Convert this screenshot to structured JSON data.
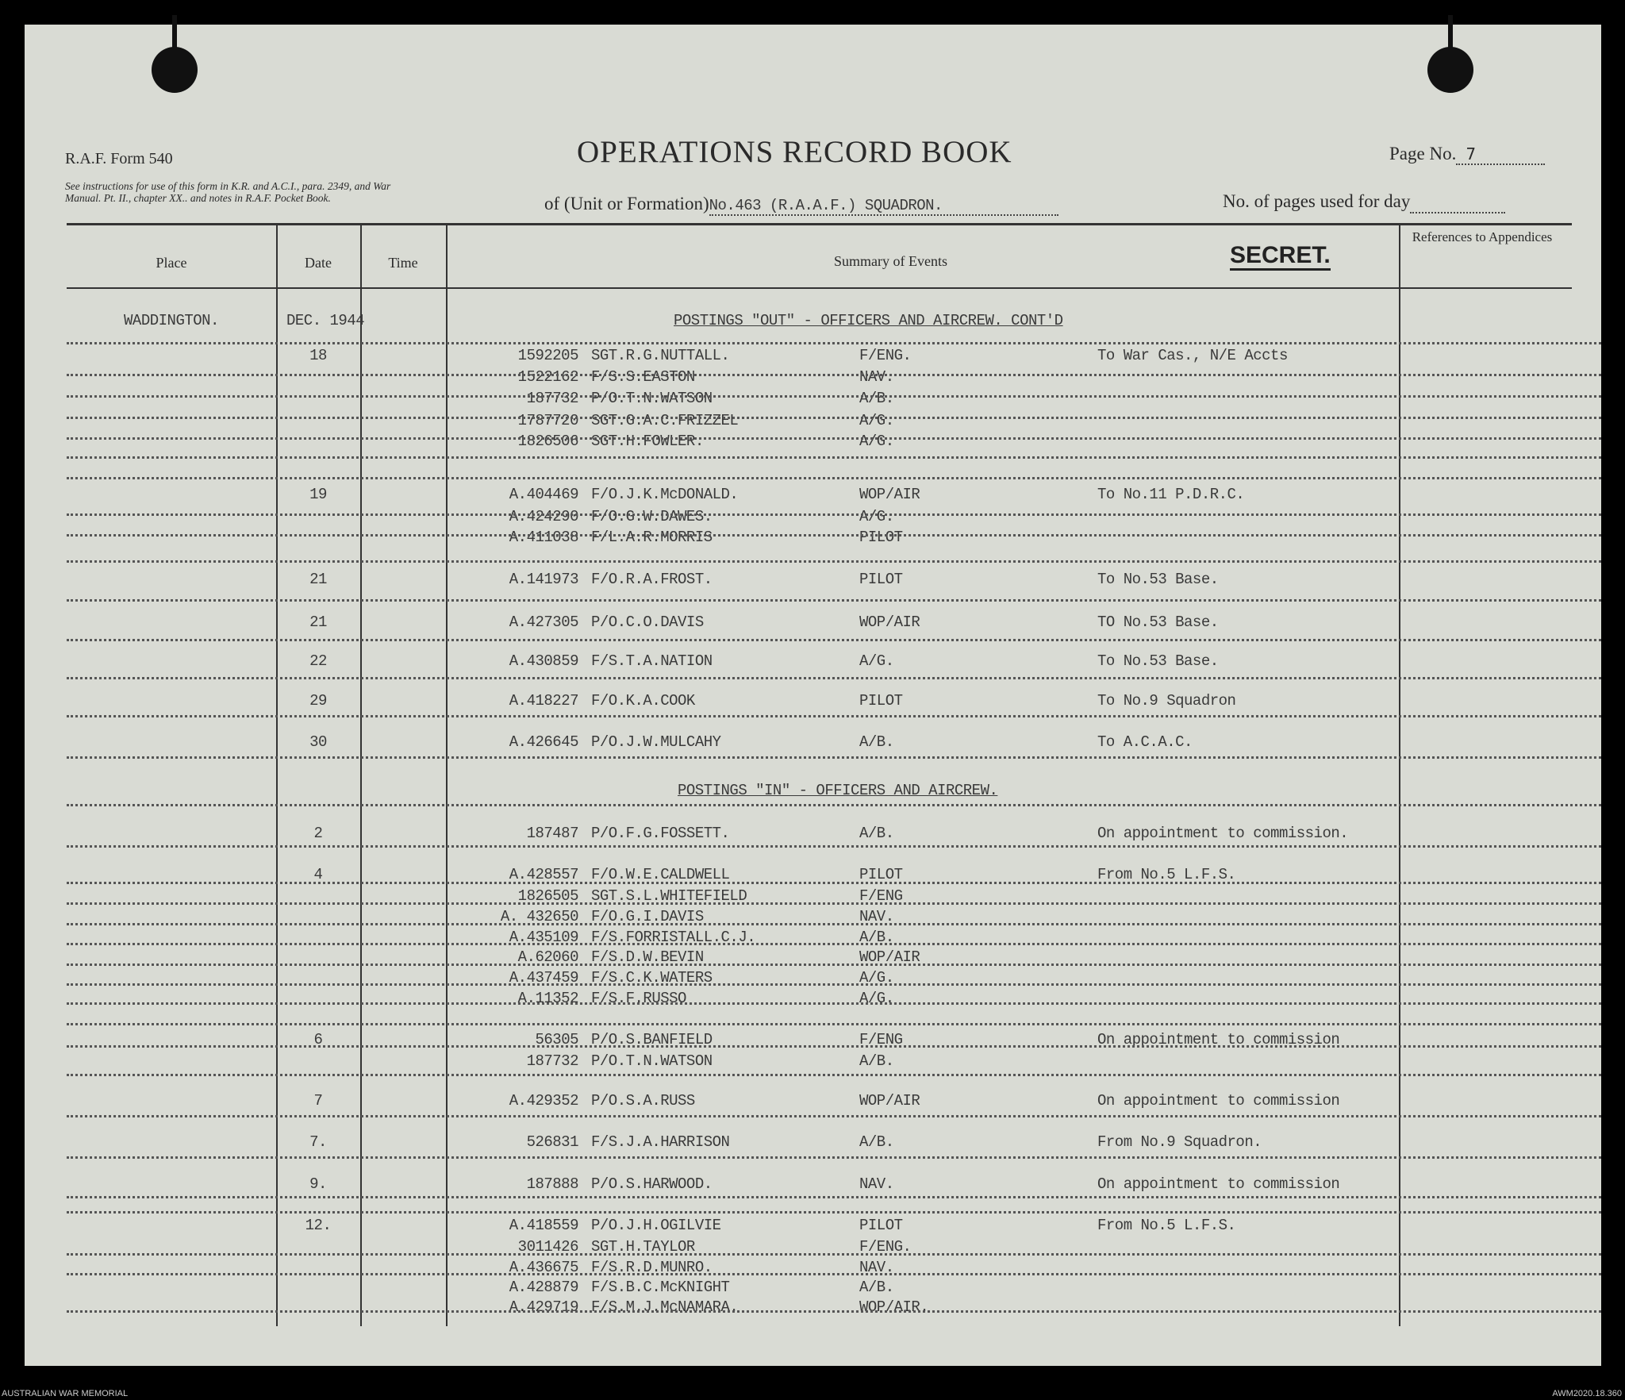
{
  "form": {
    "form_no": "R.A.F. Form 540",
    "instructions": "See instructions for use of this form in K.R. and A.C.I., para. 2349, and War Manual. Pt. II., chapter XX.. and notes in R.A.F. Pocket Book.",
    "title": "OPERATIONS RECORD BOOK",
    "page_label": "Page No.",
    "page_value": "7",
    "unit_label": "of (Unit or Formation)",
    "unit_value": "No.463 (R.A.A.F.) SQUADRON.",
    "pages_used_label": "No. of pages used for day",
    "secret": "SECRET."
  },
  "columns": {
    "place": "Place",
    "date": "Date",
    "time": "Time",
    "summary": "Summary of Events",
    "refs": "References to Appendices"
  },
  "place": "WADDINGTON.",
  "month": "DEC. 1944",
  "headings": [
    "POSTINGS \"OUT\" - OFFICERS AND AIRCREW. CONT'D",
    "POSTINGS \"IN\" - OFFICERS AND AIRCREW."
  ],
  "entries": [
    {
      "date": "18",
      "lines": [
        {
          "id": "1592205",
          "name": "SGT.R.G.NUTTALL.",
          "role": "F/ENG.",
          "remark": "To War Cas., N/E Accts"
        },
        {
          "id": "1522162",
          "name": "F/S.S.EASTON",
          "role": "NAV.",
          "remark": ""
        },
        {
          "id": "187732",
          "name": "P/O.T.N.WATSON",
          "role": "A/B.",
          "remark": ""
        },
        {
          "id": "1787720",
          "name": "SGT.G.A.C.FRIZZEL",
          "role": "A/G.",
          "remark": ""
        },
        {
          "id": "1826506",
          "name": "SGT.H.FOWLER.",
          "role": "A/G.",
          "remark": ""
        }
      ]
    },
    {
      "date": "19",
      "lines": [
        {
          "id": "A.404469",
          "name": "F/O.J.K.McDONALD.",
          "role": "WOP/AIR",
          "remark": "To No.11 P.D.R.C."
        },
        {
          "id": "A.424290",
          "name": "F/O.G.W.DAWES.",
          "role": "A/G.",
          "remark": ""
        },
        {
          "id": "A.411038",
          "name": "F/L.A.R.MORRIS",
          "role": "PILOT",
          "remark": ""
        }
      ]
    },
    {
      "date": "21",
      "lines": [
        {
          "id": "A.141973",
          "name": "F/O.R.A.FROST.",
          "role": "PILOT",
          "remark": "To No.53 Base."
        }
      ]
    },
    {
      "date": "21",
      "lines": [
        {
          "id": "A.427305",
          "name": "P/O.C.O.DAVIS",
          "role": "WOP/AIR",
          "remark": "TO No.53 Base."
        }
      ]
    },
    {
      "date": "22",
      "lines": [
        {
          "id": "A.430859",
          "name": "F/S.T.A.NATION",
          "role": "A/G.",
          "remark": "To No.53 Base."
        }
      ]
    },
    {
      "date": "29",
      "lines": [
        {
          "id": "A.418227",
          "name": "F/O.K.A.COOK",
          "role": "PILOT",
          "remark": "To No.9 Squadron"
        }
      ]
    },
    {
      "date": "30",
      "lines": [
        {
          "id": "A.426645",
          "name": "P/O.J.W.MULCAHY",
          "role": "A/B.",
          "remark": "To A.C.A.C."
        }
      ]
    },
    {
      "date": "2",
      "lines": [
        {
          "id": "187487",
          "name": "P/O.F.G.FOSSETT.",
          "role": "A/B.",
          "remark": "On appointment to commission."
        }
      ]
    },
    {
      "date": "4",
      "lines": [
        {
          "id": "A.428557",
          "name": "F/O.W.E.CALDWELL",
          "role": "PILOT",
          "remark": "From No.5 L.F.S."
        },
        {
          "id": "1826505",
          "name": "SGT.S.L.WHITEFIELD",
          "role": "F/ENG",
          "remark": ""
        },
        {
          "id": "A. 432650",
          "name": "F/O.G.I.DAVIS",
          "role": "NAV.",
          "remark": ""
        },
        {
          "id": "A.435109",
          "name": "F/S.FORRISTALL.C.J.",
          "role": "A/B.",
          "remark": ""
        },
        {
          "id": "A.62060",
          "name": "F/S.D.W.BEVIN",
          "role": "WOP/AIR",
          "remark": ""
        },
        {
          "id": "A.437459",
          "name": "F/S.C.K.WATERS",
          "role": "A/G.",
          "remark": ""
        },
        {
          "id": "A.11352",
          "name": "F/S.F.RUSSO",
          "role": "A/G.",
          "remark": ""
        }
      ]
    },
    {
      "date": "6",
      "lines": [
        {
          "id": "56305",
          "name": "P/O.S.BANFIELD",
          "role": "F/ENG",
          "remark": "On appointment to commission"
        },
        {
          "id": "187732",
          "name": "P/O.T.N.WATSON",
          "role": "A/B.",
          "remark": ""
        }
      ]
    },
    {
      "date": "7",
      "lines": [
        {
          "id": "A.429352",
          "name": "P/O.S.A.RUSS",
          "role": "WOP/AIR",
          "remark": "On appointment to commission"
        }
      ]
    },
    {
      "date": "7.",
      "lines": [
        {
          "id": "526831",
          "name": "F/S.J.A.HARRISON",
          "role": "A/B.",
          "remark": "From No.9 Squadron."
        }
      ]
    },
    {
      "date": "9.",
      "lines": [
        {
          "id": "187888",
          "name": "P/O.S.HARWOOD.",
          "role": "NAV.",
          "remark": "On appointment to commission"
        }
      ]
    },
    {
      "date": "12.",
      "lines": [
        {
          "id": "A.418559",
          "name": "P/O.J.H.OGILVIE",
          "role": "PILOT",
          "remark": "From No.5 L.F.S."
        },
        {
          "id": "3011426",
          "name": "SGT.H.TAYLOR",
          "role": "F/ENG.",
          "remark": ""
        },
        {
          "id": "A.436675",
          "name": "F/S.R.D.MUNRO.",
          "role": "NAV.",
          "remark": ""
        },
        {
          "id": "A.428879",
          "name": "F/S.B.C.McKNIGHT",
          "role": "A/B.",
          "remark": ""
        },
        {
          "id": "A.429719",
          "name": "F/S.M.J.McNAMARA.",
          "role": "WOP/AIR.",
          "remark": ""
        }
      ]
    }
  ],
  "footer": {
    "left": "AUSTRALIAN WAR MEMORIAL",
    "right": "AWM2020.18.360"
  }
}
